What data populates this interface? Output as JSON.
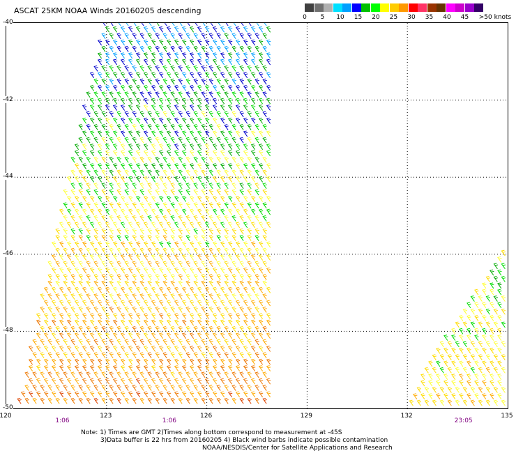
{
  "title": "ASCAT 25KM NOAA Winds 20160205 descending",
  "legend": {
    "colors": [
      "#404040",
      "#707070",
      "#b0b0b0",
      "#00e0ff",
      "#00a0ff",
      "#0000ff",
      "#00c000",
      "#00ff00",
      "#ffff00",
      "#ffcc00",
      "#ff9900",
      "#ff0000",
      "#ff3366",
      "#993300",
      "#663300",
      "#ff00ff",
      "#cc00cc",
      "#9900cc",
      "#330066"
    ],
    "labels": [
      "0",
      "5",
      "10",
      "15",
      "20",
      "25",
      "30",
      "35",
      "40",
      "45",
      ">50 knots"
    ]
  },
  "axes": {
    "lat_labels": [
      "-40",
      "-42",
      "-44",
      "-46",
      "-48",
      "-50"
    ],
    "lat_values": [
      -40,
      -42,
      -44,
      -46,
      -48,
      -50
    ],
    "lon_labels": [
      "120",
      "123",
      "126",
      "129",
      "132",
      "135"
    ],
    "lon_values": [
      120,
      123,
      126,
      129,
      132,
      135
    ],
    "lat_range": [
      -50,
      -40
    ],
    "lon_range": [
      120,
      135
    ],
    "grid": "dotted"
  },
  "time_labels": [
    {
      "text": "1:06",
      "lon": 121.7
    },
    {
      "text": "1:06",
      "lon": 124.9
    },
    {
      "text": "23:05",
      "lon": 133.7
    }
  ],
  "notes": [
    "Note: 1) Times are GMT 2)Times along bottom correspond to measurement at -45S",
    "3)Data buffer is 22 hrs from 20160205 4) Black wind barbs indicate possible contamination",
    "NOAA/NESDIS/Center for Satellite Applications and Research"
  ],
  "swaths": [
    {
      "corners_lonlat": [
        [
          122.95,
          -40
        ],
        [
          128.0,
          -40
        ],
        [
          128.0,
          -50
        ],
        [
          120.4,
          -50
        ]
      ],
      "speed_knots_north": 15,
      "speed_knots_south": 30
    },
    {
      "corners_lonlat": [
        [
          135,
          -45.8
        ],
        [
          135,
          -50
        ],
        [
          131.9,
          -50
        ]
      ],
      "speed_knots_north": 20,
      "speed_knots_south": 25
    }
  ],
  "colors": {
    "grid": "#000000",
    "time_text": "#800080"
  }
}
